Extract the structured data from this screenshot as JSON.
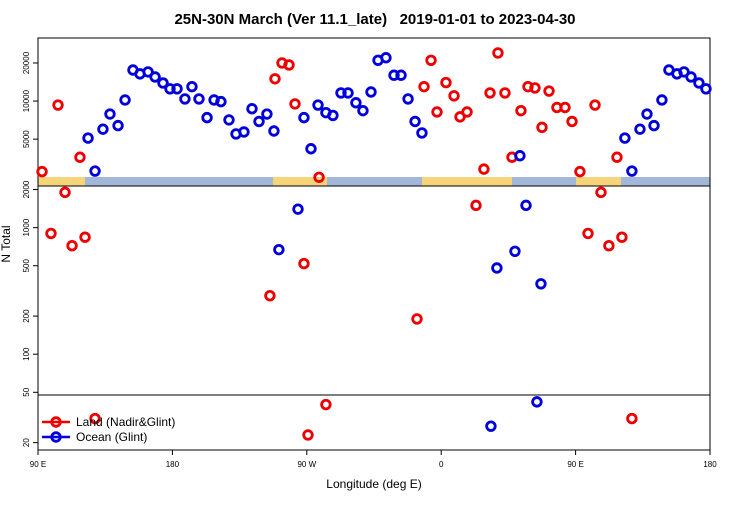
{
  "chart_data": {
    "type": "scatter",
    "title": "25N-30N March (Ver 11.1_late)   2019-01-01 to 2023-04-30",
    "x_label": "Longitude (deg E)",
    "y_label": "N Total",
    "log_y": true,
    "legend_position": "lower left",
    "xlim": [
      90,
      540
    ],
    "ylim": [
      17.5,
      31500
    ],
    "xticks": [
      {
        "value": 90,
        "label": "90 E"
      },
      180,
      {
        "value": 270,
        "label": "90 W"
      },
      {
        "value": 360,
        "label": "0"
      },
      {
        "value": 450,
        "label": "90 E"
      },
      {
        "value": 540,
        "label": "180"
      }
    ],
    "yticks": [
      20,
      50,
      100,
      200,
      500,
      1000,
      2000,
      5000,
      10000,
      20000
    ],
    "series": [
      {
        "name": "Land (Nadir&Glint)",
        "color": "#ee0000",
        "x": [
          92.7,
          98.7,
          103.4,
          108.1,
          112.8,
          118.1,
          121.5,
          128.2,
          245.3,
          248.7,
          253.4,
          258.1,
          262.1,
          268.1,
          270.8,
          278.2,
          282.8,
          343.8,
          348.5,
          353.2,
          357.2,
          363.2,
          368.6,
          372.6,
          377.3,
          383.3,
          388.6,
          392.7,
          398.0,
          402.7,
          407.4,
          413.4,
          418.1,
          422.8,
          427.5,
          432.2,
          437.5,
          442.9,
          447.6,
          452.9,
          458.3,
          463.0,
          467.0,
          472.3,
          477.7,
          481.0,
          487.7
        ],
        "values": [
          2770,
          900,
          9300,
          1900,
          720,
          3600,
          840,
          31,
          290,
          15000,
          20000,
          19300,
          9500,
          520,
          23,
          2500,
          40,
          190,
          13000,
          21000,
          8200,
          14000,
          11000,
          7500,
          8200,
          1500,
          2900,
          11600,
          24000,
          11600,
          3600,
          8400,
          13000,
          12700,
          6200,
          12000,
          8900,
          8900,
          6900,
          2770,
          900,
          9300,
          1900,
          720,
          3600,
          840,
          31
        ]
      },
      {
        "name": "Ocean (Glint)",
        "color": "#0000dd",
        "x": [
          123.5,
          128.2,
          133.5,
          138.2,
          143.6,
          148.3,
          153.6,
          158.3,
          163.7,
          168.4,
          173.7,
          178.4,
          183.1,
          188.4,
          193.1,
          197.8,
          203.2,
          207.9,
          212.5,
          217.9,
          222.6,
          227.9,
          233.3,
          238.0,
          243.3,
          248.0,
          251.3,
          264.1,
          268.1,
          272.8,
          277.5,
          282.8,
          287.5,
          292.9,
          297.6,
          302.9,
          307.6,
          313.0,
          317.7,
          323.0,
          328.4,
          333.1,
          337.8,
          342.5,
          347.1,
          393.3,
          397.3,
          409.4,
          412.7,
          416.8,
          424.1,
          426.8,
          483.0,
          487.7,
          493.1,
          497.8,
          502.5,
          507.8,
          512.5,
          517.9,
          522.6,
          527.3,
          532.6,
          537.3
        ],
        "values": [
          5100,
          2800,
          6000,
          7900,
          6400,
          10200,
          17600,
          16400,
          17000,
          15500,
          13900,
          12500,
          12500,
          10400,
          13000,
          10400,
          7400,
          10200,
          9900,
          7100,
          5500,
          5700,
          8700,
          6900,
          7900,
          5800,
          670,
          1400,
          7400,
          4200,
          9300,
          8100,
          7700,
          11600,
          11600,
          9700,
          8400,
          11800,
          21000,
          22000,
          16000,
          16000,
          10400,
          6900,
          5600,
          27,
          480,
          650,
          3700,
          1500,
          42,
          360,
          5100,
          2800,
          6000,
          7900,
          6400,
          10200,
          17600,
          16400,
          17000,
          15500,
          13900,
          12500
        ]
      }
    ]
  }
}
